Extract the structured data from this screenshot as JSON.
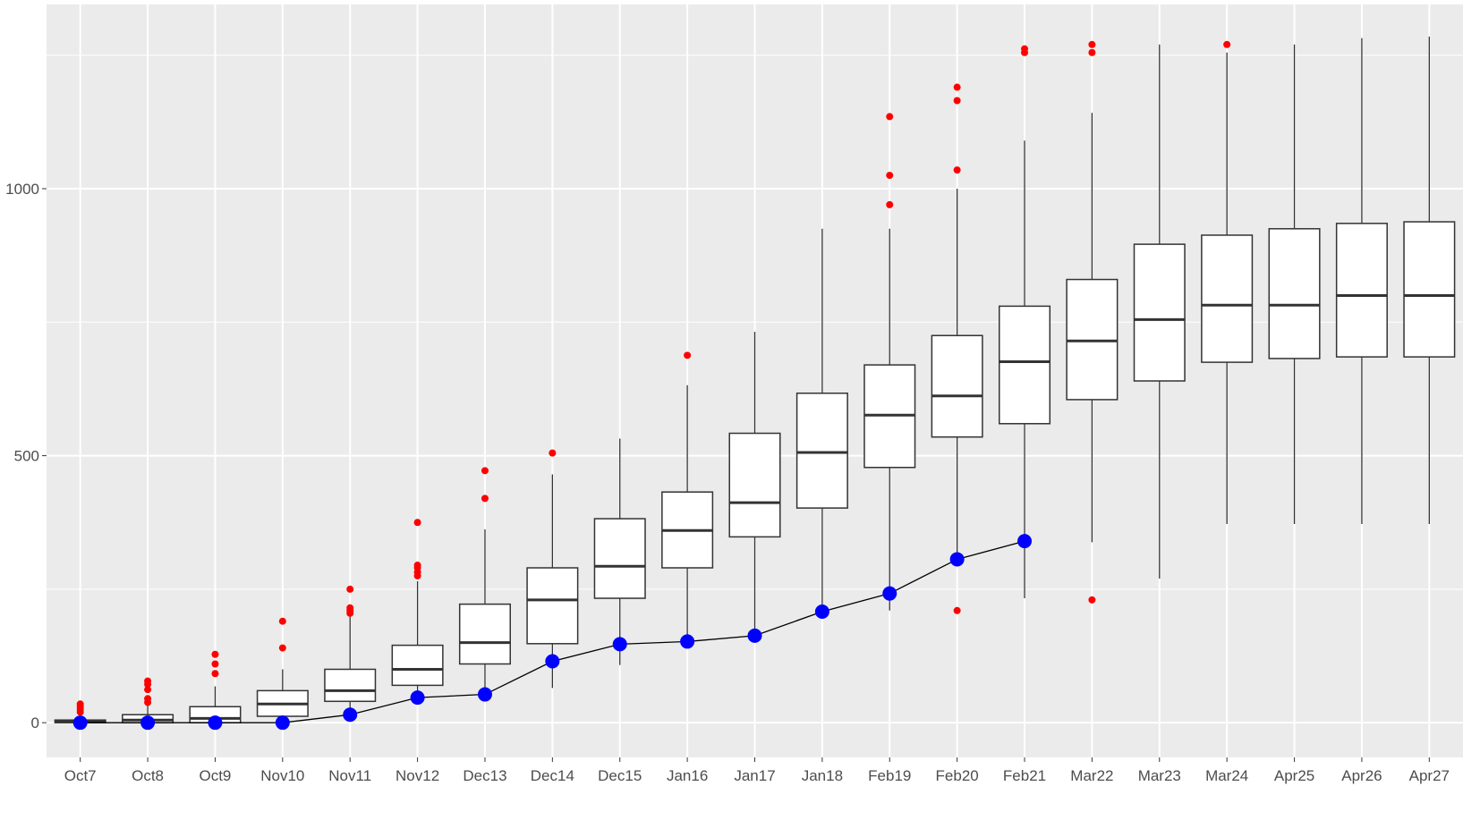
{
  "chart_data": {
    "type": "box",
    "title": "",
    "xlabel": "",
    "ylabel": "",
    "ylim": [
      -65,
      1345
    ],
    "yticks": [
      0,
      500,
      1000
    ],
    "grid": true,
    "categories": [
      "Oct7",
      "Oct8",
      "Oct9",
      "Nov10",
      "Nov11",
      "Nov12",
      "Dec13",
      "Dec14",
      "Dec15",
      "Jan16",
      "Jan17",
      "Jan18",
      "Feb19",
      "Feb20",
      "Feb21",
      "Mar22",
      "Mar23",
      "Mar24",
      "Apr25",
      "Apr26",
      "Apr27"
    ],
    "boxes": [
      {
        "category": "Oct7",
        "min": 0,
        "q1": 0,
        "median": 2,
        "q3": 5,
        "max": 12,
        "outliers": [
          20,
          25,
          30,
          35
        ]
      },
      {
        "category": "Oct8",
        "min": 0,
        "q1": 0,
        "median": 5,
        "q3": 15,
        "max": 32,
        "outliers": [
          38,
          45,
          62,
          72,
          78
        ]
      },
      {
        "category": "Oct9",
        "min": 0,
        "q1": 0,
        "median": 8,
        "q3": 30,
        "max": 68,
        "outliers": [
          92,
          110,
          128
        ]
      },
      {
        "category": "Nov10",
        "min": 0,
        "q1": 12,
        "median": 35,
        "q3": 60,
        "max": 100,
        "outliers": [
          140,
          190
        ]
      },
      {
        "category": "Nov11",
        "min": 10,
        "q1": 40,
        "median": 60,
        "q3": 100,
        "max": 200,
        "outliers": [
          205,
          210,
          215,
          250
        ]
      },
      {
        "category": "Nov12",
        "min": 40,
        "q1": 70,
        "median": 100,
        "q3": 145,
        "max": 265,
        "outliers": [
          275,
          282,
          290,
          295,
          375
        ]
      },
      {
        "category": "Dec13",
        "min": 50,
        "q1": 110,
        "median": 150,
        "q3": 222,
        "max": 362,
        "outliers": [
          420,
          472
        ]
      },
      {
        "category": "Dec14",
        "min": 65,
        "q1": 148,
        "median": 230,
        "q3": 290,
        "max": 465,
        "outliers": [
          505
        ]
      },
      {
        "category": "Dec15",
        "min": 108,
        "q1": 233,
        "median": 293,
        "q3": 382,
        "max": 532,
        "outliers": []
      },
      {
        "category": "Jan16",
        "min": 150,
        "q1": 290,
        "median": 360,
        "q3": 432,
        "max": 632,
        "outliers": [
          688
        ]
      },
      {
        "category": "Jan17",
        "min": 165,
        "q1": 348,
        "median": 412,
        "q3": 542,
        "max": 732,
        "outliers": []
      },
      {
        "category": "Jan18",
        "min": 210,
        "q1": 402,
        "median": 506,
        "q3": 617,
        "max": 925,
        "outliers": []
      },
      {
        "category": "Feb19",
        "min": 210,
        "q1": 478,
        "median": 576,
        "q3": 670,
        "max": 925,
        "outliers": [
          970,
          1025,
          1135
        ]
      },
      {
        "category": "Feb20",
        "min": 310,
        "q1": 535,
        "median": 612,
        "q3": 725,
        "max": 1000,
        "outliers": [
          210,
          1035,
          1165,
          1190
        ]
      },
      {
        "category": "Feb21",
        "min": 233,
        "q1": 560,
        "median": 676,
        "q3": 780,
        "max": 1090,
        "outliers": [
          1255,
          1262
        ]
      },
      {
        "category": "Mar22",
        "min": 338,
        "q1": 605,
        "median": 715,
        "q3": 830,
        "max": 1142,
        "outliers": [
          230,
          1255,
          1270
        ]
      },
      {
        "category": "Mar23",
        "min": 270,
        "q1": 640,
        "median": 755,
        "q3": 896,
        "max": 1270,
        "outliers": []
      },
      {
        "category": "Mar24",
        "min": 372,
        "q1": 675,
        "median": 782,
        "q3": 913,
        "max": 1255,
        "outliers": [
          1270
        ]
      },
      {
        "category": "Apr25",
        "min": 372,
        "q1": 682,
        "median": 782,
        "q3": 925,
        "max": 1270,
        "outliers": []
      },
      {
        "category": "Apr26",
        "min": 372,
        "q1": 685,
        "median": 800,
        "q3": 935,
        "max": 1282,
        "outliers": []
      },
      {
        "category": "Apr27",
        "min": 372,
        "q1": 685,
        "median": 800,
        "q3": 938,
        "max": 1285,
        "outliers": []
      }
    ],
    "series": [
      {
        "type": "line",
        "color": "#0000ff",
        "points": [
          {
            "category": "Oct7",
            "value": 0
          },
          {
            "category": "Oct8",
            "value": 0
          },
          {
            "category": "Oct9",
            "value": 0
          },
          {
            "category": "Nov10",
            "value": 0
          },
          {
            "category": "Nov11",
            "value": 15
          },
          {
            "category": "Nov12",
            "value": 47
          },
          {
            "category": "Dec13",
            "value": 53
          },
          {
            "category": "Dec14",
            "value": 115
          },
          {
            "category": "Dec15",
            "value": 147
          },
          {
            "category": "Jan16",
            "value": 152
          },
          {
            "category": "Jan17",
            "value": 163
          },
          {
            "category": "Jan18",
            "value": 208
          },
          {
            "category": "Feb19",
            "value": 242
          },
          {
            "category": "Feb20",
            "value": 306
          },
          {
            "category": "Feb21",
            "value": 340
          }
        ]
      }
    ],
    "colors": {
      "outlier": "#ff0000",
      "line": "#000000",
      "point": "#0000ff",
      "panel": "#ebebeb",
      "grid": "#ffffff"
    }
  }
}
